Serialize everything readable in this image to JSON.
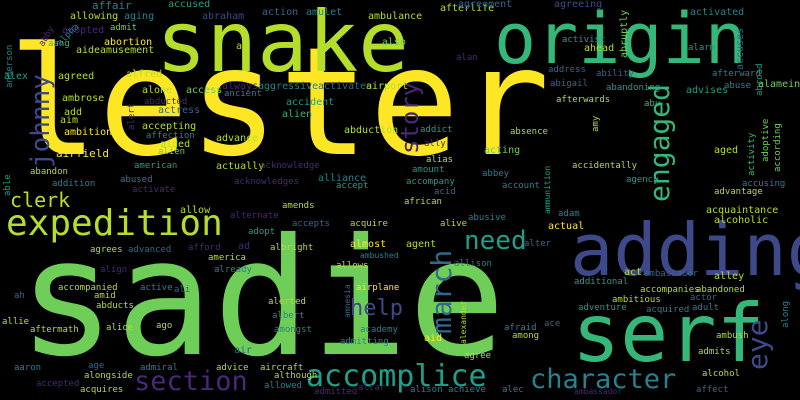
{
  "colors": {
    "background": "#000000",
    "palette": [
      "#fde725",
      "#b5de2b",
      "#6ece58",
      "#35b779",
      "#1f9e89",
      "#26828e",
      "#31688e",
      "#3e4989",
      "#482878",
      "#440154"
    ]
  },
  "words": [
    {
      "text": "lester",
      "color": "#fde725"
    },
    {
      "text": "sadie",
      "color": "#6ece58"
    },
    {
      "text": "snake",
      "color": "#b5de2b"
    },
    {
      "text": "origin",
      "color": "#35b779"
    },
    {
      "text": "adding",
      "color": "#3e4989"
    },
    {
      "text": "serf",
      "color": "#35b779"
    },
    {
      "text": "expedition",
      "color": "#b5de2b"
    },
    {
      "text": "accomplice",
      "color": "#1f9e89"
    },
    {
      "text": "character",
      "color": "#26828e"
    },
    {
      "text": "section",
      "color": "#482878"
    },
    {
      "text": "engaged",
      "color": "#35b779"
    },
    {
      "text": "march",
      "color": "#31688e"
    },
    {
      "text": "johnny",
      "color": "#3e4989"
    },
    {
      "text": "story",
      "color": "#482878"
    },
    {
      "text": "need",
      "color": "#1f9e89"
    },
    {
      "text": "help",
      "color": "#3e4989"
    },
    {
      "text": "eye",
      "color": "#3e4989"
    },
    {
      "text": "clerk",
      "color": "#b5de2b"
    },
    {
      "text": "affair",
      "color": "#26828e"
    },
    {
      "text": "aging",
      "color": "#26828e"
    },
    {
      "text": "accused",
      "color": "#1f9e89"
    },
    {
      "text": "abraham",
      "color": "#3e4989"
    },
    {
      "text": "action",
      "color": "#31688e"
    },
    {
      "text": "amulet",
      "color": "#26828e"
    },
    {
      "text": "ambulance",
      "color": "#b5de2b"
    },
    {
      "text": "afterlife",
      "color": "#b5de2b"
    },
    {
      "text": "agreement",
      "color": "#31688e"
    },
    {
      "text": "agreeing",
      "color": "#3e4989"
    },
    {
      "text": "abruptly",
      "color": "#6ece58"
    },
    {
      "text": "activated",
      "color": "#26828e"
    },
    {
      "text": "alarm",
      "color": "#1f9e89"
    },
    {
      "text": "accuses",
      "color": "#31688e"
    },
    {
      "text": "allowing",
      "color": "#b5de2b"
    },
    {
      "text": "adopted",
      "color": "#482878"
    },
    {
      "text": "admit",
      "color": "#6ece58"
    },
    {
      "text": "aang",
      "color": "#35b779"
    },
    {
      "text": "aide",
      "color": "#b5de2b"
    },
    {
      "text": "abortion",
      "color": "#fde725"
    },
    {
      "text": "amusement",
      "color": "#b5de2b"
    },
    {
      "text": "alpha",
      "color": "#26828e"
    },
    {
      "text": "abby",
      "color": "#482878"
    },
    {
      "text": "anderson",
      "color": "#26828e"
    },
    {
      "text": "al",
      "color": "#b5de2b"
    },
    {
      "text": "also",
      "color": "#6ece58"
    },
    {
      "text": "alan",
      "color": "#482878"
    },
    {
      "text": "activist",
      "color": "#1f9e89"
    },
    {
      "text": "ahead",
      "color": "#b5de2b"
    },
    {
      "text": "abroad",
      "color": "#1f9e89"
    },
    {
      "text": "alex",
      "color": "#1f9e89"
    },
    {
      "text": "agreed",
      "color": "#b5de2b"
    },
    {
      "text": "alfred",
      "color": "#b5de2b"
    },
    {
      "text": "always",
      "color": "#482878"
    },
    {
      "text": "address",
      "color": "#31688e"
    },
    {
      "text": "ability",
      "color": "#31688e"
    },
    {
      "text": "afterward",
      "color": "#26828e"
    },
    {
      "text": "alamein",
      "color": "#6ece58"
    },
    {
      "text": "alone",
      "color": "#b5de2b"
    },
    {
      "text": "access",
      "color": "#6ece58"
    },
    {
      "text": "ancient",
      "color": "#26828e"
    },
    {
      "text": "aggressive",
      "color": "#26828e"
    },
    {
      "text": "activates",
      "color": "#31688e"
    },
    {
      "text": "airport",
      "color": "#b5de2b"
    },
    {
      "text": "abigail",
      "color": "#31688e"
    },
    {
      "text": "abandoning",
      "color": "#1f9e89"
    },
    {
      "text": "advises",
      "color": "#1f9e89"
    },
    {
      "text": "abuse",
      "color": "#26828e"
    },
    {
      "text": "ambrose",
      "color": "#b5de2b"
    },
    {
      "text": "abducted",
      "color": "#482878"
    },
    {
      "text": "actress",
      "color": "#31688e"
    },
    {
      "text": "accident",
      "color": "#1f9e89"
    },
    {
      "text": "alien",
      "color": "#35b779"
    },
    {
      "text": "afterwards",
      "color": "#b5de2b"
    },
    {
      "text": "abu",
      "color": "#35b779"
    },
    {
      "text": "alert",
      "color": "#482878"
    },
    {
      "text": "add",
      "color": "#b5de2b"
    },
    {
      "text": "aim",
      "color": "#b5de2b"
    },
    {
      "text": "ambition",
      "color": "#fde725"
    },
    {
      "text": "accepting",
      "color": "#b5de2b"
    },
    {
      "text": "affection",
      "color": "#26828e"
    },
    {
      "text": "abduction",
      "color": "#b5de2b"
    },
    {
      "text": "addict",
      "color": "#1f9e89"
    },
    {
      "text": "ally",
      "color": "#482878"
    },
    {
      "text": "absence",
      "color": "#b5de2b"
    },
    {
      "text": "advance",
      "color": "#b5de2b"
    },
    {
      "text": "aided",
      "color": "#b5de2b"
    },
    {
      "text": "alien",
      "color": "#6ece58"
    },
    {
      "text": "airfield",
      "color": "#fde725"
    },
    {
      "text": "acting",
      "color": "#6ece58"
    },
    {
      "text": "alias",
      "color": "#b5de2b"
    },
    {
      "text": "amy",
      "color": "#b5de2b"
    },
    {
      "text": "aged",
      "color": "#b5de2b"
    },
    {
      "text": "activity",
      "color": "#35b779"
    },
    {
      "text": "adoptive",
      "color": "#6ece58"
    },
    {
      "text": "according",
      "color": "#6ece58"
    },
    {
      "text": "accidentally",
      "color": "#b5de2b"
    },
    {
      "text": "amount",
      "color": "#1f9e89"
    },
    {
      "text": "acid",
      "color": "#31688e"
    },
    {
      "text": "american",
      "color": "#1f9e89"
    },
    {
      "text": "actually",
      "color": "#b5de2b"
    },
    {
      "text": "acknowledge",
      "color": "#482878"
    },
    {
      "text": "abbey",
      "color": "#26828e"
    },
    {
      "text": "agency",
      "color": "#1f9e89"
    },
    {
      "text": "able",
      "color": "#1f9e89"
    },
    {
      "text": "abandon",
      "color": "#b5de2b"
    },
    {
      "text": "addition",
      "color": "#26828e"
    },
    {
      "text": "abused",
      "color": "#26828e"
    },
    {
      "text": "activate",
      "color": "#482878"
    },
    {
      "text": "acknowledges",
      "color": "#482878"
    },
    {
      "text": "alliance",
      "color": "#26828e"
    },
    {
      "text": "accept",
      "color": "#1f9e89"
    },
    {
      "text": "accompany",
      "color": "#1f9e89"
    },
    {
      "text": "account",
      "color": "#26828e"
    },
    {
      "text": "ammunition",
      "color": "#1f9e89"
    },
    {
      "text": "accusing",
      "color": "#26828e"
    },
    {
      "text": "advantage",
      "color": "#b5de2b"
    },
    {
      "text": "allow",
      "color": "#b5de2b"
    },
    {
      "text": "alternate",
      "color": "#482878"
    },
    {
      "text": "amends",
      "color": "#b5de2b"
    },
    {
      "text": "accepts",
      "color": "#31688e"
    },
    {
      "text": "acquire",
      "color": "#b5de2b"
    },
    {
      "text": "african",
      "color": "#b5de2b"
    },
    {
      "text": "alive",
      "color": "#b5de2b"
    },
    {
      "text": "abusive",
      "color": "#26828e"
    },
    {
      "text": "adam",
      "color": "#26828e"
    },
    {
      "text": "acquaintance",
      "color": "#b5de2b"
    },
    {
      "text": "alcoholic",
      "color": "#b5de2b"
    },
    {
      "text": "agrees",
      "color": "#b5de2b"
    },
    {
      "text": "advanced",
      "color": "#31688e"
    },
    {
      "text": "afford",
      "color": "#482878"
    },
    {
      "text": "ad",
      "color": "#482878"
    },
    {
      "text": "adopt",
      "color": "#1f9e89"
    },
    {
      "text": "albright",
      "color": "#b5de2b"
    },
    {
      "text": "almost",
      "color": "#fde725"
    },
    {
      "text": "actual",
      "color": "#fde725"
    },
    {
      "text": "alter",
      "color": "#31688e"
    },
    {
      "text": "ambushed",
      "color": "#26828e"
    },
    {
      "text": "agent",
      "color": "#b5de2b"
    },
    {
      "text": "america",
      "color": "#b5de2b"
    },
    {
      "text": "align",
      "color": "#482878"
    },
    {
      "text": "already",
      "color": "#26828e"
    },
    {
      "text": "allows",
      "color": "#b5de2b"
    },
    {
      "text": "allison",
      "color": "#26828e"
    },
    {
      "text": "act",
      "color": "#b5de2b"
    },
    {
      "text": "additional",
      "color": "#1f9e89"
    },
    {
      "text": "ambassador",
      "color": "#31688e"
    },
    {
      "text": "alley",
      "color": "#b5de2b"
    },
    {
      "text": "ah",
      "color": "#31688e"
    },
    {
      "text": "accompanied",
      "color": "#b5de2b"
    },
    {
      "text": "amid",
      "color": "#b5de2b"
    },
    {
      "text": "active",
      "color": "#26828e"
    },
    {
      "text": "ali",
      "color": "#31688e"
    },
    {
      "text": "abandoned",
      "color": "#b5de2b"
    },
    {
      "text": "accompanies",
      "color": "#b5de2b"
    },
    {
      "text": "actor",
      "color": "#31688e"
    },
    {
      "text": "abducts",
      "color": "#b5de2b"
    },
    {
      "text": "ambitious",
      "color": "#b5de2b"
    },
    {
      "text": "adult",
      "color": "#26828e"
    },
    {
      "text": "alerted",
      "color": "#b5de2b"
    },
    {
      "text": "airplane",
      "color": "#fde725"
    },
    {
      "text": "albert",
      "color": "#26828e"
    },
    {
      "text": "adventure",
      "color": "#1f9e89"
    },
    {
      "text": "acquired",
      "color": "#26828e"
    },
    {
      "text": "allie",
      "color": "#b5de2b"
    },
    {
      "text": "aftermath",
      "color": "#b5de2b"
    },
    {
      "text": "alice",
      "color": "#b5de2b"
    },
    {
      "text": "ago",
      "color": "#b5de2b"
    },
    {
      "text": "amongst",
      "color": "#26828e"
    },
    {
      "text": "amnesia",
      "color": "#31688e"
    },
    {
      "text": "alexander",
      "color": "#b5de2b"
    },
    {
      "text": "afraid",
      "color": "#26828e"
    },
    {
      "text": "ace",
      "color": "#31688e"
    },
    {
      "text": "ambush",
      "color": "#b5de2b"
    },
    {
      "text": "along",
      "color": "#26828e"
    },
    {
      "text": "academy",
      "color": "#26828e"
    },
    {
      "text": "aid",
      "color": "#fde725"
    },
    {
      "text": "among",
      "color": "#b5de2b"
    },
    {
      "text": "admitting",
      "color": "#26828e"
    },
    {
      "text": "admits",
      "color": "#b5de2b"
    },
    {
      "text": "aaron",
      "color": "#26828e"
    },
    {
      "text": "age",
      "color": "#31688e"
    },
    {
      "text": "alongside",
      "color": "#b5de2b"
    },
    {
      "text": "admiral",
      "color": "#26828e"
    },
    {
      "text": "air",
      "color": "#31688e"
    },
    {
      "text": "advice",
      "color": "#b5de2b"
    },
    {
      "text": "aircraft",
      "color": "#b5de2b"
    },
    {
      "text": "although",
      "color": "#b5de2b"
    },
    {
      "text": "agree",
      "color": "#b5de2b"
    },
    {
      "text": "alcohol",
      "color": "#b5de2b"
    },
    {
      "text": "affect",
      "color": "#31688e"
    },
    {
      "text": "accepted",
      "color": "#482878"
    },
    {
      "text": "acquires",
      "color": "#b5de2b"
    },
    {
      "text": "allowed",
      "color": "#26828e"
    },
    {
      "text": "admitted",
      "color": "#482878"
    },
    {
      "text": "altar",
      "color": "#482878"
    },
    {
      "text": "alison",
      "color": "#26828e"
    },
    {
      "text": "achieve",
      "color": "#26828e"
    },
    {
      "text": "alec",
      "color": "#26828e"
    },
    {
      "text": "ambassador",
      "color": "#482878"
    }
  ]
}
